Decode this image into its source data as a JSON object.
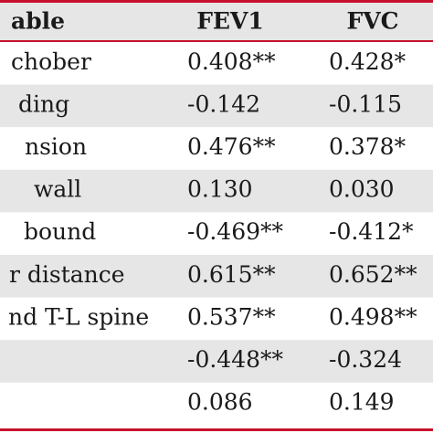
{
  "table": {
    "header": [
      "able",
      "FEV1",
      "FVC"
    ],
    "rows": [
      {
        "label": "chober",
        "fev1": "0.408**",
        "fvc": "0.428*"
      },
      {
        "label": "ding",
        "fev1": "-0.142",
        "fvc": "-0.115"
      },
      {
        "label": "nsion",
        "fev1": "0.476**",
        "fvc": "0.378*"
      },
      {
        "label": "wall",
        "fev1": "0.130",
        "fvc": "0.030"
      },
      {
        "label": "bound",
        "fev1": "-0.469**",
        "fvc": "-0.412*"
      },
      {
        "label": "r distance",
        "fev1": "0.615**",
        "fvc": "0.652**"
      },
      {
        "label": "nd T-L spine",
        "fev1": "0.537**",
        "fvc": "0.498**"
      },
      {
        "fev1": "-0.448**",
        "fvc": "-0.324"
      },
      {
        "fev1": "0.086",
        "fvc": "0.149"
      }
    ]
  }
}
